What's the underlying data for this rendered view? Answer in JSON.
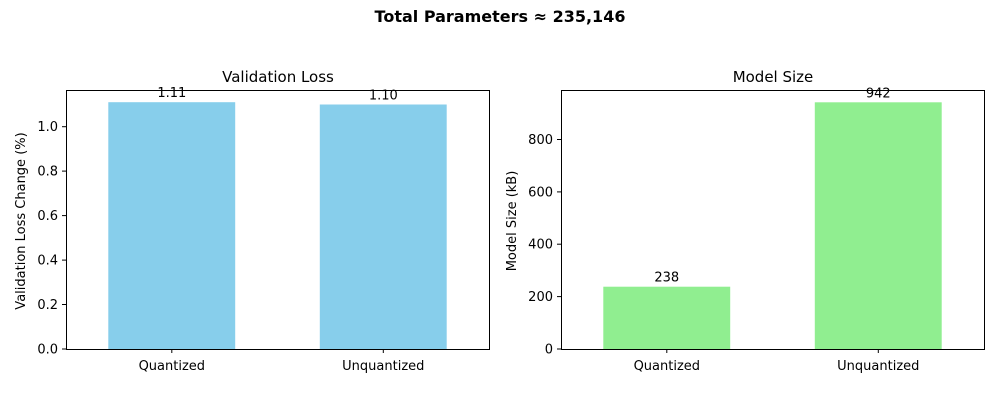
{
  "figure": {
    "suptitle": "Total Parameters ≈ 235,146"
  },
  "chart_data": [
    {
      "type": "bar",
      "title": "Validation Loss",
      "xlabel": "",
      "ylabel": "Validation Loss Change (%)",
      "categories": [
        "Quantized",
        "Unquantized"
      ],
      "values": [
        1.11,
        1.1
      ],
      "data_labels": [
        "1.11",
        "1.10"
      ],
      "ylim": [
        0,
        1.165
      ],
      "yticks": [
        0.0,
        0.2,
        0.4,
        0.6,
        0.8,
        1.0
      ],
      "ytick_labels": [
        "0.0",
        "0.2",
        "0.4",
        "0.6",
        "0.8",
        "1.0"
      ],
      "bar_color": "#87ceeb",
      "grid": false
    },
    {
      "type": "bar",
      "title": "Model Size",
      "xlabel": "",
      "ylabel": "Model Size (kB)",
      "categories": [
        "Quantized",
        "Unquantized"
      ],
      "values": [
        238,
        942
      ],
      "data_labels": [
        "238",
        "942"
      ],
      "ylim": [
        0,
        989
      ],
      "yticks": [
        0,
        200,
        400,
        600,
        800
      ],
      "ytick_labels": [
        "0",
        "200",
        "400",
        "600",
        "800"
      ],
      "bar_color": "#90ee90",
      "grid": false
    }
  ]
}
